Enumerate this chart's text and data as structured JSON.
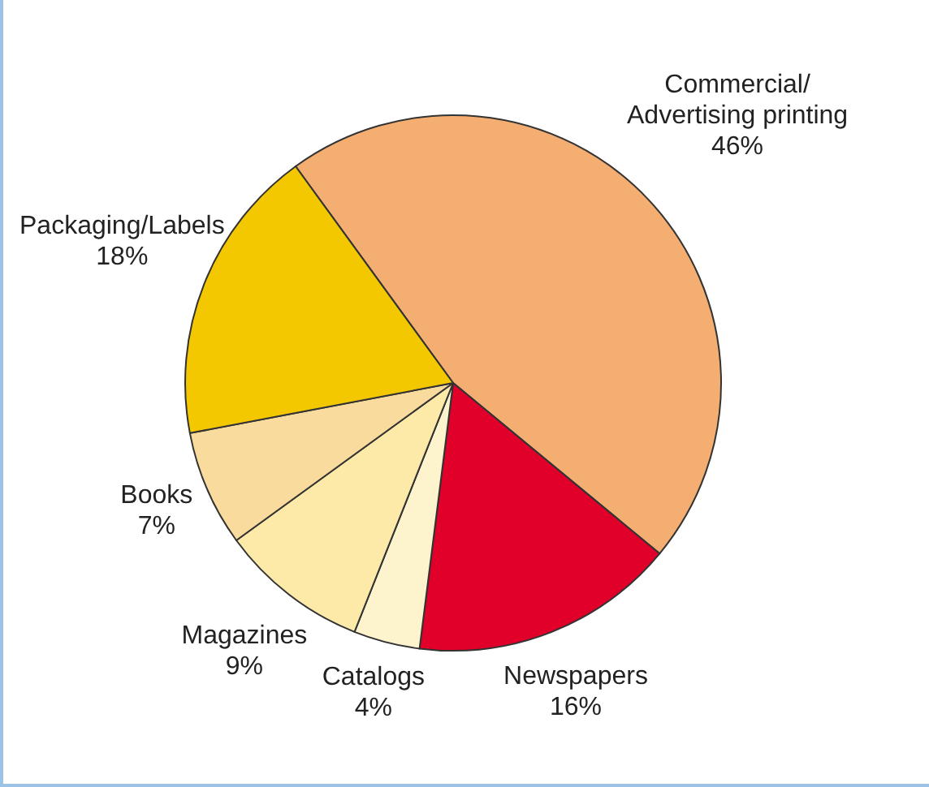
{
  "chart_data": {
    "type": "pie",
    "categories": [
      "Commercial/ Advertising printing",
      "Newspapers",
      "Catalogs",
      "Magazines",
      "Books",
      "Packaging/Labels"
    ],
    "values": [
      46,
      16,
      4,
      9,
      7,
      18
    ],
    "value_labels": [
      "46%",
      "16%",
      "4%",
      "9%",
      "7%",
      "18%"
    ],
    "colors": [
      "#f4ae72",
      "#e0002a",
      "#fdf3cc",
      "#fde9a8",
      "#fadb9e",
      "#f4c800"
    ],
    "legend": false
  }
}
